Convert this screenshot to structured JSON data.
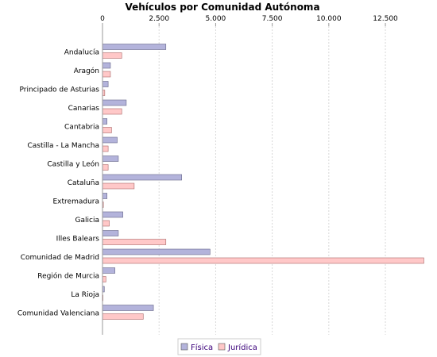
{
  "chart_data": {
    "type": "bar",
    "orientation": "horizontal",
    "title": "Vehículos por Comunidad Autónoma",
    "axis_position": "top",
    "xlim": [
      0,
      14500
    ],
    "xticks": [
      0,
      2500,
      5000,
      7500,
      10000,
      12500
    ],
    "xtick_labels": [
      "0",
      "2.500",
      "5.000",
      "7.500",
      "10.000",
      "12.500"
    ],
    "grid": true,
    "legend_position": "bottom",
    "categories": [
      "Andalucía",
      "Aragón",
      "Principado de Asturias",
      "Canarias",
      "Cantabria",
      "Castilla - La Mancha",
      "Castilla y León",
      "Cataluña",
      "Extremadura",
      "Galicia",
      "Illes Balears",
      "Comunidad de Madrid",
      "Región de Murcia",
      "La Rioja",
      "Comunidad Valenciana"
    ],
    "series": [
      {
        "name": "Física",
        "color": "#b3b3db",
        "values": [
          2800,
          350,
          250,
          1050,
          200,
          650,
          700,
          3500,
          200,
          900,
          700,
          4750,
          550,
          80,
          2250
        ]
      },
      {
        "name": "Jurídica",
        "color": "#ffc8c8",
        "values": [
          850,
          350,
          100,
          850,
          400,
          250,
          250,
          1400,
          40,
          300,
          2800,
          14200,
          150,
          20,
          1800
        ]
      }
    ]
  }
}
